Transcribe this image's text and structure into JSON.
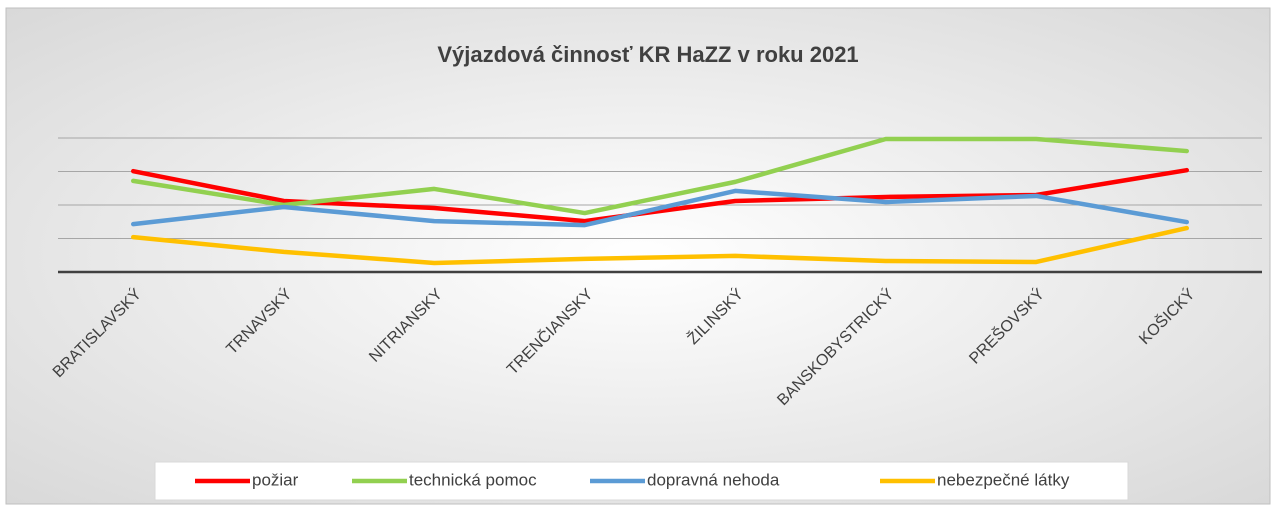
{
  "chart_data": {
    "type": "line",
    "title": "Výjazdová činnosť KR HaZZ v roku 2021",
    "categories": [
      "BRATISLAVSKÝ",
      "TRNAVSKÝ",
      "NITRIANSKY",
      "TRENČIANSKY",
      "ŽILINSKÝ",
      "BANSKOBYSTRICKÝ",
      "PREŠOVSKÝ",
      "KOŠICKÝ"
    ],
    "series": [
      {
        "name": "požiar",
        "color": "#ff0000",
        "values": [
          3.01,
          2.12,
          1.91,
          1.52,
          2.12,
          2.24,
          2.3,
          3.04
        ]
      },
      {
        "name": "technická pomoc",
        "color": "#92d050",
        "values": [
          2.72,
          2.0,
          2.48,
          1.76,
          2.69,
          3.97,
          3.97,
          3.61
        ]
      },
      {
        "name": "dopravná nehoda",
        "color": "#5b9bd5",
        "values": [
          1.43,
          1.94,
          1.52,
          1.4,
          2.42,
          2.09,
          2.27,
          1.49
        ]
      },
      {
        "name": "nebezpečné látky",
        "color": "#ffc000",
        "values": [
          1.04,
          0.6,
          0.27,
          0.39,
          0.48,
          0.33,
          0.3,
          1.31
        ]
      }
    ],
    "ylim": [
      0,
      4
    ],
    "yticks": [
      0,
      1,
      2,
      3,
      4
    ],
    "grid": true,
    "legend": "bottom"
  }
}
